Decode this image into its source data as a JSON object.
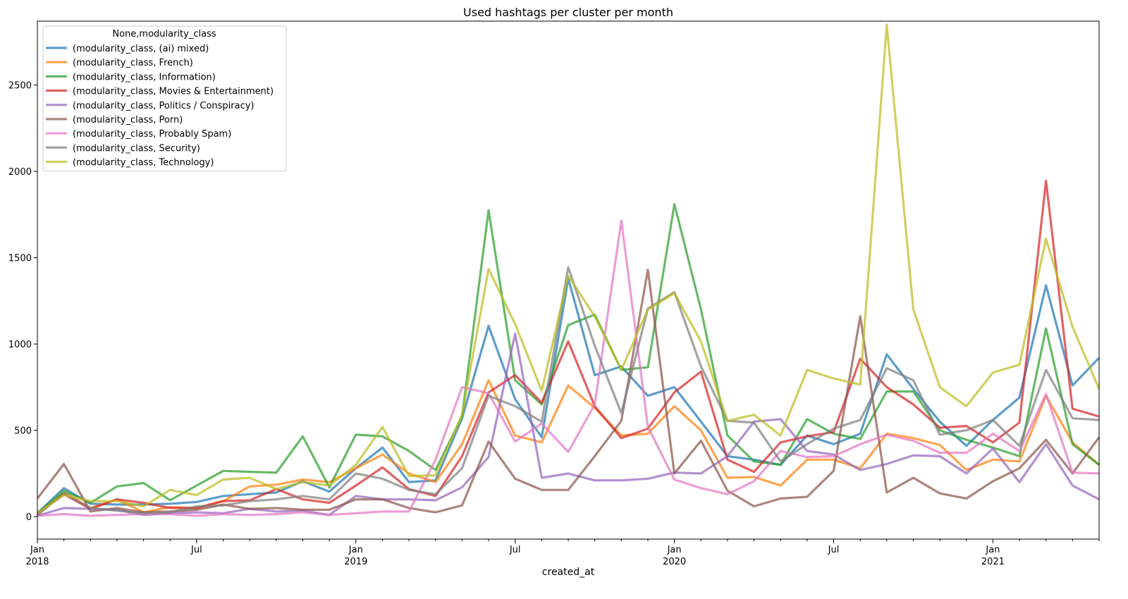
{
  "chart_data": {
    "type": "line",
    "title": "Used hashtags per cluster per month",
    "xlabel": "created_at",
    "ylabel": "",
    "ylim": [
      -130,
      2870
    ],
    "grid": false,
    "legend_placement": "top-left",
    "legend_title": "None,modularity_class",
    "x_months": [
      "2018-01",
      "2018-02",
      "2018-03",
      "2018-04",
      "2018-05",
      "2018-06",
      "2018-07",
      "2018-08",
      "2018-09",
      "2018-10",
      "2018-11",
      "2018-12",
      "2019-01",
      "2019-02",
      "2019-03",
      "2019-04",
      "2019-05",
      "2019-06",
      "2019-07",
      "2019-08",
      "2019-09",
      "2019-10",
      "2019-11",
      "2019-12",
      "2020-01",
      "2020-02",
      "2020-03",
      "2020-04",
      "2020-05",
      "2020-06",
      "2020-07",
      "2020-08",
      "2020-09",
      "2020-10",
      "2020-11",
      "2020-12",
      "2021-01",
      "2021-02",
      "2021-03",
      "2021-04",
      "2021-05"
    ],
    "y_ticks": [
      0,
      500,
      1000,
      1500,
      2000,
      2500
    ],
    "x_major_ticks": [
      {
        "month": "2018-01",
        "label": "Jan",
        "sublabel": "2018"
      },
      {
        "month": "2018-07",
        "label": "Jul",
        "sublabel": ""
      },
      {
        "month": "2019-01",
        "label": "Jan",
        "sublabel": "2019"
      },
      {
        "month": "2019-07",
        "label": "Jul",
        "sublabel": ""
      },
      {
        "month": "2020-01",
        "label": "Jan",
        "sublabel": "2020"
      },
      {
        "month": "2020-07",
        "label": "Jul",
        "sublabel": ""
      },
      {
        "month": "2021-01",
        "label": "Jan",
        "sublabel": "2021"
      }
    ],
    "series": [
      {
        "name": "(modularity_class, (ai) mixed)",
        "color": "#1f77b4",
        "values": [
          20,
          165,
          75,
          70,
          70,
          75,
          85,
          120,
          130,
          140,
          205,
          145,
          280,
          400,
          200,
          210,
          570,
          1105,
          680,
          460,
          1380,
          820,
          870,
          700,
          750,
          550,
          350,
          330,
          300,
          470,
          420,
          480,
          940,
          740,
          550,
          410,
          560,
          690,
          1340,
          760,
          920
        ]
      },
      {
        "name": "(modularity_class, French)",
        "color": "#ff7f0e",
        "values": [
          10,
          140,
          50,
          100,
          25,
          55,
          50,
          90,
          175,
          185,
          215,
          200,
          280,
          360,
          250,
          200,
          420,
          790,
          470,
          430,
          760,
          630,
          470,
          480,
          640,
          500,
          225,
          230,
          180,
          330,
          330,
          280,
          480,
          455,
          415,
          270,
          330,
          320,
          700,
          430,
          300
        ]
      },
      {
        "name": "(modularity_class, Information)",
        "color": "#2ca02c",
        "values": [
          20,
          150,
          80,
          175,
          195,
          95,
          180,
          265,
          260,
          255,
          465,
          170,
          475,
          465,
          380,
          270,
          580,
          1775,
          790,
          650,
          1110,
          1170,
          850,
          865,
          1810,
          1200,
          470,
          320,
          300,
          565,
          480,
          450,
          725,
          725,
          500,
          445,
          400,
          350,
          1090,
          420,
          300
        ]
      },
      {
        "name": "(modularity_class, Movies & Entertainment)",
        "color": "#d62728",
        "values": [
          15,
          130,
          45,
          100,
          80,
          50,
          50,
          90,
          95,
          160,
          100,
          80,
          180,
          285,
          160,
          120,
          350,
          720,
          820,
          660,
          1015,
          640,
          455,
          510,
          720,
          840,
          330,
          260,
          430,
          465,
          490,
          915,
          750,
          650,
          515,
          525,
          430,
          545,
          1945,
          625,
          580
        ]
      },
      {
        "name": "(modularity_class, Politics / Conspiracy)",
        "color": "#9467bd",
        "values": [
          5,
          50,
          45,
          40,
          10,
          20,
          25,
          20,
          45,
          30,
          35,
          10,
          120,
          100,
          100,
          95,
          170,
          345,
          1060,
          225,
          250,
          210,
          210,
          220,
          255,
          250,
          350,
          550,
          565,
          380,
          360,
          270,
          305,
          355,
          350,
          250,
          395,
          200,
          420,
          180,
          100
        ]
      },
      {
        "name": "(modularity_class, Porn)",
        "color": "#8c564b",
        "values": [
          105,
          305,
          30,
          50,
          25,
          30,
          40,
          70,
          45,
          50,
          40,
          40,
          100,
          100,
          50,
          25,
          65,
          435,
          220,
          155,
          155,
          350,
          555,
          1430,
          250,
          440,
          150,
          60,
          105,
          115,
          265,
          1160,
          140,
          225,
          135,
          105,
          205,
          280,
          445,
          250,
          460
        ]
      },
      {
        "name": "(modularity_class, Probably Spam)",
        "color": "#e377c2",
        "values": [
          5,
          15,
          5,
          10,
          15,
          15,
          5,
          15,
          10,
          15,
          25,
          10,
          20,
          30,
          30,
          330,
          750,
          715,
          435,
          540,
          375,
          650,
          1715,
          520,
          215,
          165,
          130,
          205,
          380,
          345,
          350,
          420,
          475,
          440,
          370,
          370,
          480,
          380,
          710,
          255,
          250
        ]
      },
      {
        "name": "(modularity_class, Security)",
        "color": "#7f7f7f",
        "values": [
          10,
          135,
          50,
          35,
          20,
          25,
          60,
          65,
          90,
          100,
          120,
          100,
          250,
          220,
          155,
          130,
          280,
          700,
          640,
          550,
          1445,
          990,
          600,
          1205,
          1300,
          870,
          555,
          545,
          320,
          420,
          510,
          560,
          860,
          790,
          475,
          500,
          560,
          410,
          850,
          570,
          560
        ]
      },
      {
        "name": "(modularity_class, Technology)",
        "color": "#bcbd22",
        "values": [
          20,
          125,
          90,
          90,
          60,
          155,
          125,
          215,
          225,
          160,
          200,
          180,
          300,
          520,
          235,
          240,
          590,
          1435,
          1115,
          730,
          1395,
          1160,
          850,
          1200,
          1295,
          1015,
          555,
          590,
          470,
          850,
          800,
          765,
          2850,
          1200,
          750,
          640,
          835,
          880,
          1610,
          1100,
          740
        ]
      }
    ]
  }
}
